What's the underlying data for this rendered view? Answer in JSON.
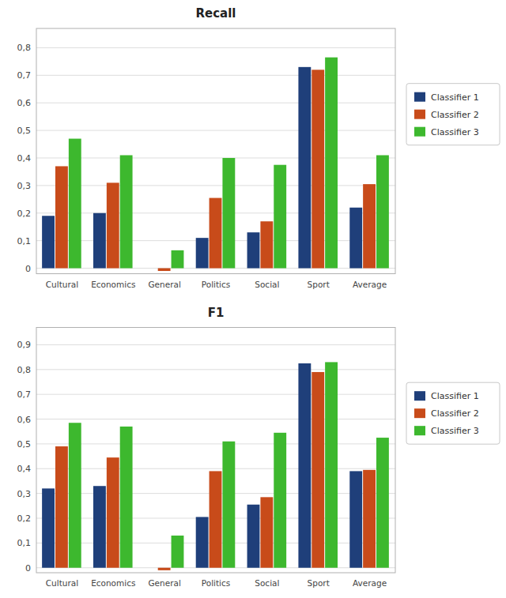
{
  "chart_data": [
    {
      "type": "bar",
      "title": "Recall",
      "categories": [
        "Cultural",
        "Economics",
        "General",
        "Politics",
        "Social",
        "Sport",
        "Average"
      ],
      "series": [
        {
          "name": "Classifier 1",
          "color": "#1F3F7A",
          "values": [
            0.19,
            0.2,
            0.0,
            0.11,
            0.13,
            0.73,
            0.22
          ]
        },
        {
          "name": "Classifier 2",
          "color": "#C84B1A",
          "values": [
            0.37,
            0.31,
            -0.01,
            0.255,
            0.17,
            0.72,
            0.305
          ]
        },
        {
          "name": "Classifier 3",
          "color": "#3DB82E",
          "values": [
            0.47,
            0.41,
            0.065,
            0.4,
            0.375,
            0.765,
            0.41
          ]
        }
      ],
      "ylim": [
        -0.02,
        0.87
      ],
      "yticks": [
        0,
        {
          "value": 0.1,
          "label": "0,1"
        },
        {
          "value": 0.2,
          "label": "0,2"
        },
        {
          "value": 0.3,
          "label": "0,3"
        },
        {
          "value": 0.4,
          "label": "0,4"
        },
        {
          "value": 0.5,
          "label": "0,5"
        },
        {
          "value": 0.6,
          "label": "0,6"
        },
        {
          "value": 0.7,
          "label": "0,7"
        },
        {
          "value": 0.8,
          "label": "0,8"
        }
      ],
      "grid": true,
      "legend": "right"
    },
    {
      "type": "bar",
      "title": "F1",
      "categories": [
        "Cultural",
        "Economics",
        "General",
        "Politics",
        "Social",
        "Sport",
        "Average"
      ],
      "series": [
        {
          "name": "Classifier 1",
          "color": "#1F3F7A",
          "values": [
            0.32,
            0.33,
            0.0,
            0.205,
            0.255,
            0.825,
            0.39
          ]
        },
        {
          "name": "Classifier 2",
          "color": "#C84B1A",
          "values": [
            0.49,
            0.445,
            -0.01,
            0.39,
            0.285,
            0.79,
            0.395
          ]
        },
        {
          "name": "Classifier 3",
          "color": "#3DB82E",
          "values": [
            0.585,
            0.57,
            0.13,
            0.51,
            0.545,
            0.83,
            0.525
          ]
        }
      ],
      "ylim": [
        -0.02,
        0.97
      ],
      "yticks": [
        0,
        {
          "value": 0.1,
          "label": "0,1"
        },
        {
          "value": 0.2,
          "label": "0,2"
        },
        {
          "value": 0.3,
          "label": "0,3"
        },
        {
          "value": 0.4,
          "label": "0,4"
        },
        {
          "value": 0.5,
          "label": "0,5"
        },
        {
          "value": 0.6,
          "label": "0,6"
        },
        {
          "value": 0.7,
          "label": "0,7"
        },
        {
          "value": 0.8,
          "label": "0,8"
        },
        {
          "value": 0.9,
          "label": "0,9"
        }
      ],
      "grid": true,
      "legend": "right"
    }
  ]
}
